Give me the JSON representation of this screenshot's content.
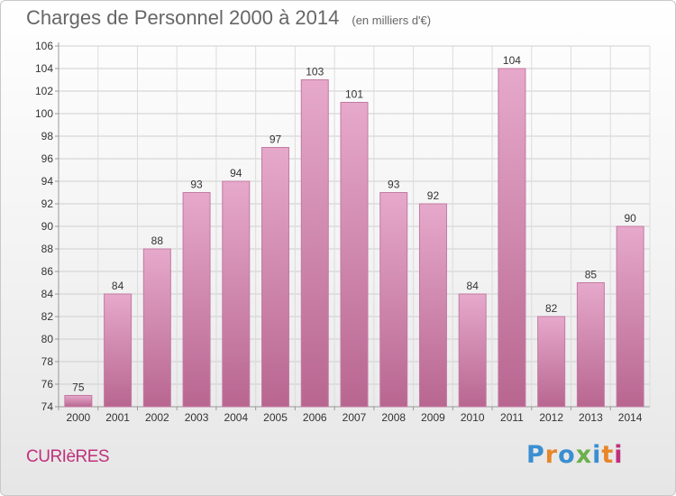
{
  "header": {
    "title": "Charges de Personnel 2000 à 2014",
    "subtitle": "(en milliers d'€)"
  },
  "footer": {
    "city": "CURIèRES",
    "logo": "Proxiti"
  },
  "colors": {
    "bar": "#d98bb6",
    "bar_light": "#e6a9cb",
    "accent": "#c0317c",
    "logo": [
      "#3a8fd1",
      "#e8862a",
      "#3a8fd1",
      "#6ab04c",
      "#3a8fd1",
      "#e8862a",
      "#c0317c"
    ]
  },
  "chart_data": {
    "type": "bar",
    "title": "Charges de Personnel 2000 à 2014",
    "subtitle": "(en milliers d'€)",
    "xlabel": "",
    "ylabel": "",
    "categories": [
      "2000",
      "2001",
      "2002",
      "2003",
      "2004",
      "2005",
      "2006",
      "2007",
      "2008",
      "2009",
      "2010",
      "2011",
      "2012",
      "2013",
      "2014"
    ],
    "values": [
      75,
      84,
      88,
      93,
      94,
      97,
      103,
      101,
      93,
      92,
      84,
      104,
      82,
      85,
      90
    ],
    "ylim": [
      74,
      106
    ],
    "yticks": [
      74,
      76,
      78,
      80,
      82,
      84,
      86,
      88,
      90,
      92,
      94,
      96,
      98,
      100,
      102,
      104,
      106
    ],
    "grid": true,
    "legend": "none"
  }
}
